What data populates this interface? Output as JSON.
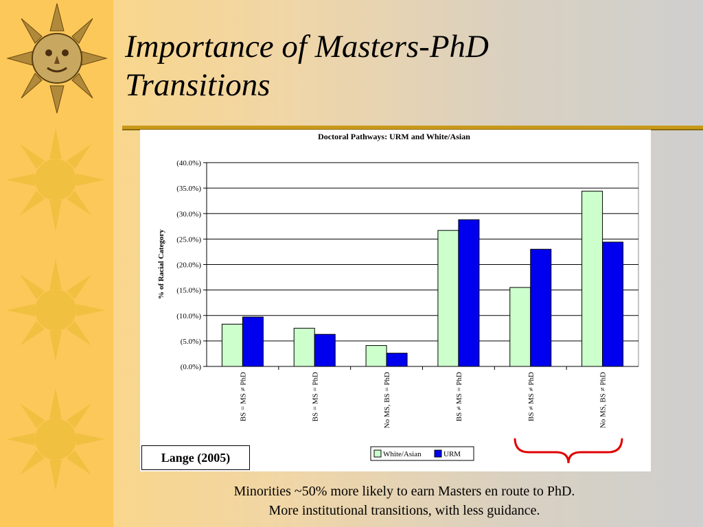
{
  "slide": {
    "title_line1": "Importance of Masters-PhD",
    "title_line2": "Transitions",
    "source": "Lange (2005)",
    "caption_line1": "Minorities ~50% more likely to earn Masters en route to PhD.",
    "caption_line2": "More institutional transitions, with less guidance."
  },
  "colors": {
    "white_asian": "#ccffcc",
    "urm": "#0000ee",
    "brace": "#e00000",
    "sidebar_sun": "#f0c040"
  },
  "icons": [
    "sun-face-icon",
    "sun-icon",
    "sun-icon",
    "sun-icon"
  ],
  "chart_data": {
    "type": "bar",
    "title": "Doctoral Pathways: URM and White/Asian",
    "ylabel": "% of Racial Category",
    "xlabel": "",
    "ylim": [
      0,
      40
    ],
    "yticks": [
      "(0.0%)",
      "(5.0%)",
      "(10.0%)",
      "(15.0%)",
      "(20.0%)",
      "(25.0%)",
      "(30.0%)",
      "(35.0%)",
      "(40.0%)"
    ],
    "categories": [
      "BS = MS ≠ PhD",
      "BS = MS = PhD",
      "No MS, BS = PhD",
      "BS ≠ MS = PhD",
      "BS ≠ MS ≠ PhD",
      "No MS, BS ≠ PhD"
    ],
    "series": [
      {
        "name": "White/Asian",
        "values": [
          8.3,
          7.5,
          4.1,
          26.7,
          15.5,
          34.4
        ]
      },
      {
        "name": "URM",
        "values": [
          9.7,
          6.3,
          2.6,
          28.8,
          23.0,
          24.4
        ]
      }
    ],
    "grid": true,
    "legend": "bottom-center"
  }
}
